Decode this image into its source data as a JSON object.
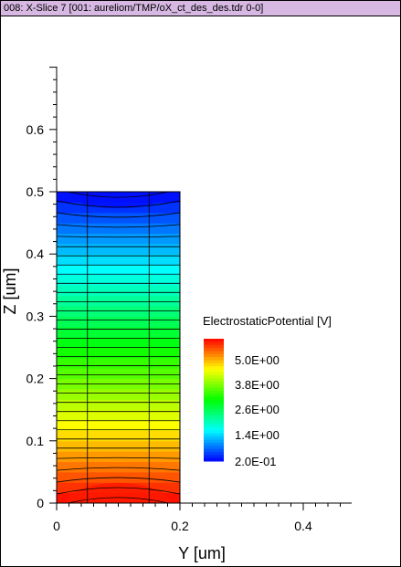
{
  "window": {
    "title": "008: X-Slice 7 [001: aureliom/TMP/oX_ct_des_des.tdr 0-0]"
  },
  "chart_data": {
    "type": "heatmap",
    "xlabel": "Y [um]",
    "ylabel": "Z [um]",
    "xlim": [
      0,
      0.48
    ],
    "ylim": [
      0,
      0.7
    ],
    "x_ticks": [
      {
        "value": 0,
        "label": "0"
      },
      {
        "value": 0.2,
        "label": "0.2"
      },
      {
        "value": 0.4,
        "label": "0.4"
      }
    ],
    "y_ticks": [
      {
        "value": 0,
        "label": "0"
      },
      {
        "value": 0.1,
        "label": "0.1"
      },
      {
        "value": 0.2,
        "label": "0.2"
      },
      {
        "value": 0.3,
        "label": "0.3"
      },
      {
        "value": 0.4,
        "label": "0.4"
      },
      {
        "value": 0.5,
        "label": "0.5"
      },
      {
        "value": 0.6,
        "label": "0.6"
      }
    ],
    "region": {
      "y_min": 0,
      "y_max": 0.2,
      "z_min": 0,
      "z_max": 0.5
    },
    "mesh_lines_y": [
      0.05,
      0.15
    ],
    "field": "ElectrostaticPotential",
    "value_range": [
      0.2,
      6.2
    ],
    "legend": {
      "title": "ElectrostaticPotential [V]",
      "labels": [
        "5.0E+00",
        "3.8E+00",
        "2.6E+00",
        "1.4E+00",
        "2.0E-01"
      ]
    },
    "colors": {
      "low": "#0000ff",
      "mid_cyan": "#00ffff",
      "mid_green": "#00ff00",
      "mid_yellow": "#ffff00",
      "high": "#ff0000"
    }
  }
}
